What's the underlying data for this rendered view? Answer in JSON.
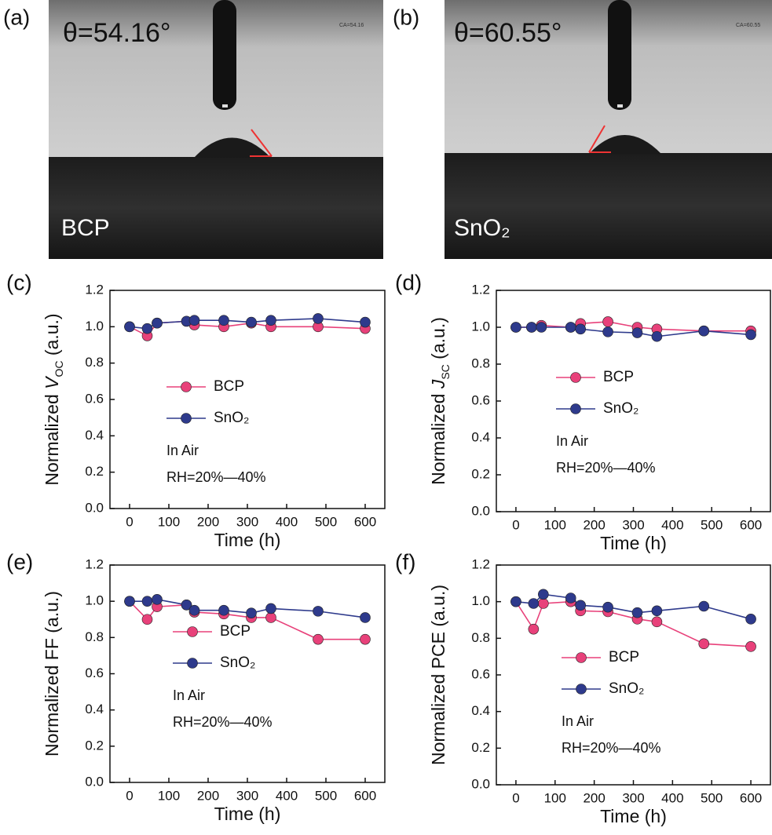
{
  "images": [
    {
      "panel_label": "(a)",
      "angle": "θ=54.16°",
      "ca": "CA=54.16",
      "sample": "BCP"
    },
    {
      "panel_label": "(b)",
      "angle": "θ=60.55°",
      "ca": "CA=60.55",
      "sample": "SnO₂"
    }
  ],
  "chart_data": [
    {
      "type": "line",
      "panel_label": "(c)",
      "x_label": "Time (h)",
      "y_label": [
        "Normalized ",
        "V",
        "OC",
        " (a.u.)"
      ],
      "x": [
        0,
        45,
        70,
        145,
        165,
        240,
        310,
        360,
        480,
        600
      ],
      "xlim": [
        -50,
        650
      ],
      "xticks": [
        0,
        100,
        200,
        300,
        400,
        500,
        600
      ],
      "ylim": [
        0,
        1.2
      ],
      "yticks": [
        {
          "value": 0,
          "label": "0.0"
        },
        0.2,
        0.4,
        0.6,
        0.8,
        {
          "value": 1,
          "label": "1.0"
        },
        1.2
      ],
      "series": [
        {
          "name": "BCP",
          "color": "#e8417a",
          "values": [
            1.0,
            0.95,
            1.02,
            1.03,
            1.01,
            1.0,
            1.02,
            1.0,
            1.0,
            0.99
          ]
        },
        {
          "name": "SnO₂",
          "color": "#2e3a8c",
          "values": [
            1.0,
            0.99,
            1.02,
            1.03,
            1.035,
            1.035,
            1.025,
            1.035,
            1.045,
            1.025
          ]
        }
      ],
      "annotations": [
        "In Air",
        "RH=20%—40%"
      ]
    },
    {
      "type": "line",
      "panel_label": "(d)",
      "x_label": "Time (h)",
      "y_label": [
        "Normalized ",
        "J",
        "SC",
        " (a.u.)"
      ],
      "x": [
        0,
        40,
        65,
        140,
        165,
        235,
        310,
        360,
        480,
        600
      ],
      "xlim": [
        -50,
        650
      ],
      "xticks": [
        0,
        100,
        200,
        300,
        400,
        500,
        600
      ],
      "ylim": [
        0,
        1.2
      ],
      "yticks": [
        {
          "value": 0,
          "label": "0.0"
        },
        0.2,
        0.4,
        0.6,
        0.8,
        {
          "value": 1,
          "label": "1.0"
        },
        1.2
      ],
      "series": [
        {
          "name": "BCP",
          "color": "#e8417a",
          "values": [
            1.0,
            1.0,
            1.01,
            1.0,
            1.02,
            1.03,
            1.0,
            0.99,
            0.98,
            0.98
          ]
        },
        {
          "name": "SnO₂",
          "color": "#2e3a8c",
          "values": [
            1.0,
            1.0,
            1.0,
            1.0,
            0.99,
            0.975,
            0.97,
            0.95,
            0.98,
            0.96
          ]
        }
      ],
      "annotations": [
        "In Air",
        "RH=20%—40%"
      ]
    },
    {
      "type": "line",
      "panel_label": "(e)",
      "x_label": "Time (h)",
      "y_label": "Normalized FF (a.u.)",
      "x": [
        0,
        45,
        70,
        145,
        165,
        240,
        310,
        360,
        480,
        600
      ],
      "xlim": [
        -50,
        650
      ],
      "xticks": [
        0,
        100,
        200,
        300,
        400,
        500,
        600
      ],
      "ylim": [
        0,
        1.2
      ],
      "yticks": [
        {
          "value": 0,
          "label": "0.0"
        },
        0.2,
        0.4,
        0.6,
        0.8,
        {
          "value": 1,
          "label": "1.0"
        },
        1.2
      ],
      "series": [
        {
          "name": "BCP",
          "color": "#e8417a",
          "values": [
            1.0,
            0.9,
            0.97,
            0.98,
            0.94,
            0.93,
            0.91,
            0.91,
            0.79,
            0.79
          ]
        },
        {
          "name": "SnO₂",
          "color": "#2e3a8c",
          "values": [
            1.0,
            1.0,
            1.01,
            0.98,
            0.95,
            0.95,
            0.935,
            0.96,
            0.945,
            0.91
          ]
        }
      ],
      "annotations": [
        "In Air",
        "RH=20%—40%"
      ]
    },
    {
      "type": "line",
      "panel_label": "(f)",
      "x_label": "Time (h)",
      "y_label": "Normalized PCE (a.u.)",
      "x": [
        0,
        45,
        70,
        140,
        165,
        235,
        310,
        360,
        480,
        600
      ],
      "xlim": [
        -50,
        650
      ],
      "xticks": [
        0,
        100,
        200,
        300,
        400,
        500,
        600
      ],
      "ylim": [
        0,
        1.2
      ],
      "yticks": [
        {
          "value": 0,
          "label": "0.0"
        },
        0.2,
        0.4,
        0.6,
        0.8,
        {
          "value": 1,
          "label": "1.0"
        },
        1.2
      ],
      "series": [
        {
          "name": "BCP",
          "color": "#e8417a",
          "values": [
            1.0,
            0.85,
            0.99,
            1.0,
            0.95,
            0.945,
            0.905,
            0.89,
            0.77,
            0.755
          ]
        },
        {
          "name": "SnO₂",
          "color": "#2e3a8c",
          "values": [
            1.0,
            0.99,
            1.04,
            1.02,
            0.98,
            0.97,
            0.94,
            0.95,
            0.975,
            0.905
          ]
        }
      ],
      "annotations": [
        "In Air",
        "RH=20%—40%"
      ]
    }
  ]
}
